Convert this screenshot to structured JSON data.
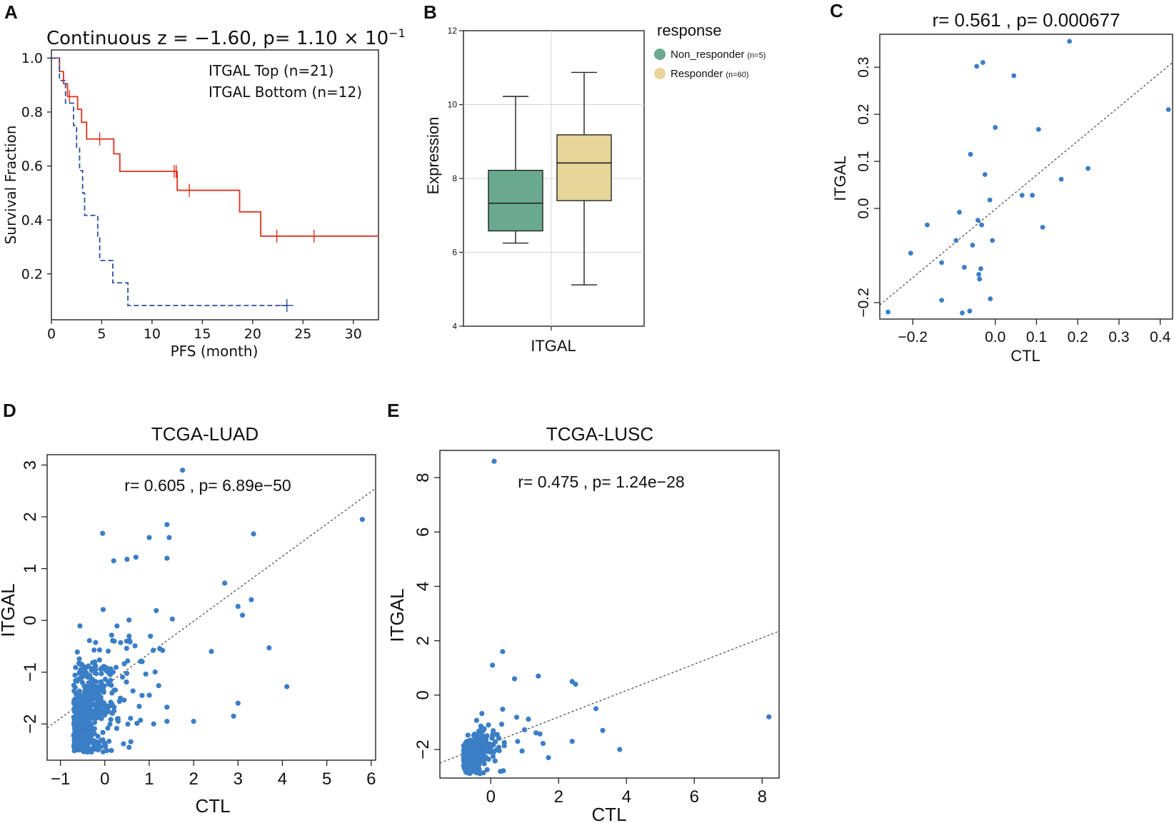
{
  "figure": {
    "panel_labels": [
      "A",
      "B",
      "C",
      "D",
      "E"
    ]
  },
  "chart_data": [
    {
      "panel": "A",
      "type": "line",
      "subtype": "kaplan-meier",
      "title": "Continuous z = −1.60, p= 1.10 × 10",
      "title_exponent": "−1",
      "xlabel": "PFS (month)",
      "ylabel": "Survival Fraction",
      "xlim": [
        0,
        32.5
      ],
      "ylim": [
        0.03,
        1.03
      ],
      "x_ticks": [
        0,
        5,
        10,
        15,
        20,
        25,
        30
      ],
      "x_tick_labels": [
        "0",
        "5",
        "10",
        "15",
        "20",
        "25",
        "30"
      ],
      "y_ticks": [
        0.2,
        0.4,
        0.6,
        0.8,
        1.0
      ],
      "y_tick_labels": [
        "0.2",
        "0.4",
        "0.6",
        "0.8",
        "1.0"
      ],
      "legend_position": "top-right",
      "series": [
        {
          "name": "ITGAL Top (n=21)",
          "color": "#e0301e",
          "style": "solid",
          "steps": [
            [
              0,
              1.0
            ],
            [
              0.8,
              0.95
            ],
            [
              1.2,
              0.905
            ],
            [
              1.6,
              0.857
            ],
            [
              2.6,
              0.81
            ],
            [
              3.0,
              0.762
            ],
            [
              3.5,
              0.7
            ],
            [
              6.2,
              0.645
            ],
            [
              6.8,
              0.58
            ],
            [
              12.5,
              0.51
            ],
            [
              18.7,
              0.43
            ],
            [
              20.8,
              0.34
            ],
            [
              32.5,
              0.34
            ]
          ],
          "censor": [
            [
              1.8,
              0.857
            ],
            [
              4.8,
              0.7
            ],
            [
              12.2,
              0.58
            ],
            [
              12.4,
              0.58
            ],
            [
              13.7,
              0.51
            ],
            [
              22.4,
              0.34
            ],
            [
              26.1,
              0.34
            ]
          ]
        },
        {
          "name": "ITGAL Bottom (n=12)",
          "color": "#2a4fa0",
          "style": "dashed",
          "steps": [
            [
              0,
              1.0
            ],
            [
              0.8,
              0.917
            ],
            [
              1.4,
              0.833
            ],
            [
              2.2,
              0.75
            ],
            [
              2.5,
              0.667
            ],
            [
              2.8,
              0.583
            ],
            [
              3.1,
              0.5
            ],
            [
              3.3,
              0.417
            ],
            [
              4.6,
              0.333
            ],
            [
              4.8,
              0.25
            ],
            [
              6.1,
              0.167
            ],
            [
              7.6,
              0.083
            ],
            [
              23.5,
              0.083
            ]
          ],
          "censor": [
            [
              23.4,
              0.083
            ]
          ]
        }
      ]
    },
    {
      "panel": "B",
      "type": "box",
      "xlabel": "ITGAL",
      "ylabel": "Expression",
      "ylim": [
        4,
        12
      ],
      "y_ticks": [
        4,
        6,
        8,
        10,
        12
      ],
      "y_tick_labels": [
        "4",
        "6",
        "8",
        "10",
        "12"
      ],
      "legend_title": "response",
      "legend_position": "right",
      "series": [
        {
          "name": "Non_responder",
          "n_label": "(n=5)",
          "color": "#6aa98f",
          "min": 6.25,
          "q1": 6.58,
          "median": 7.33,
          "q3": 8.22,
          "max": 10.22
        },
        {
          "name": "Responder",
          "n_label": "(n=60)",
          "color": "#e8d59a",
          "min": 5.12,
          "q1": 7.4,
          "median": 8.42,
          "q3": 9.18,
          "max": 10.87
        }
      ]
    },
    {
      "panel": "C",
      "type": "scatter",
      "title": "r= 0.561 , p= 0.000677",
      "xlabel": "CTL",
      "ylabel": "ITGAL",
      "xlim": [
        -0.28,
        0.43
      ],
      "ylim": [
        -0.235,
        0.37
      ],
      "x_ticks": [
        -0.2,
        0.0,
        0.1,
        0.2,
        0.3,
        0.4
      ],
      "x_tick_labels": [
        "−0.2",
        "0.0",
        "0.1",
        "0.2",
        "0.3",
        "0.4"
      ],
      "y_ticks": [
        -0.2,
        0.0,
        0.1,
        0.2,
        0.3
      ],
      "y_tick_labels": [
        "−0.2",
        "0.0",
        "0.1",
        "0.2",
        "0.3"
      ],
      "point_color": "#3a7ec6",
      "fit_line": [
        [
          -0.28,
          -0.205
        ],
        [
          0.43,
          0.31
        ]
      ],
      "points": [
        [
          -0.26,
          -0.22
        ],
        [
          -0.205,
          -0.095
        ],
        [
          -0.165,
          -0.035
        ],
        [
          -0.13,
          -0.195
        ],
        [
          -0.13,
          -0.115
        ],
        [
          -0.095,
          -0.068
        ],
        [
          -0.087,
          -0.008
        ],
        [
          -0.08,
          -0.222
        ],
        [
          -0.075,
          -0.125
        ],
        [
          -0.062,
          -0.218
        ],
        [
          -0.06,
          0.115
        ],
        [
          -0.055,
          -0.078
        ],
        [
          -0.045,
          0.302
        ],
        [
          -0.042,
          -0.025
        ],
        [
          -0.04,
          -0.14
        ],
        [
          -0.038,
          -0.15
        ],
        [
          -0.035,
          -0.128
        ],
        [
          -0.033,
          -0.035
        ],
        [
          -0.03,
          0.31
        ],
        [
          -0.025,
          0.072
        ],
        [
          -0.012,
          -0.192
        ],
        [
          -0.013,
          0.018
        ],
        [
          -0.007,
          -0.068
        ],
        [
          0.0,
          0.172
        ],
        [
          0.045,
          0.282
        ],
        [
          0.065,
          0.028
        ],
        [
          0.09,
          0.028
        ],
        [
          0.105,
          0.168
        ],
        [
          0.115,
          -0.04
        ],
        [
          0.16,
          0.062
        ],
        [
          0.18,
          0.355
        ],
        [
          0.225,
          0.085
        ],
        [
          0.42,
          0.21
        ]
      ]
    },
    {
      "panel": "D",
      "type": "scatter",
      "title": "TCGA-LUAD",
      "annotation": "r= 0.605 , p= 6.89e−50",
      "xlabel": "CTL",
      "ylabel": "ITGAL",
      "xlim": [
        -1.3,
        6.1
      ],
      "ylim": [
        -2.7,
        3.2
      ],
      "x_ticks": [
        -1,
        0,
        1,
        2,
        3,
        4,
        5,
        6
      ],
      "x_tick_labels": [
        "−1",
        "0",
        "1",
        "2",
        "3",
        "4",
        "5",
        "6"
      ],
      "y_ticks": [
        -2,
        -1,
        0,
        1,
        2,
        3
      ],
      "y_tick_labels": [
        "−2",
        "−1",
        "0",
        "1",
        "2",
        "3"
      ],
      "point_color": "#3a7ec6",
      "fit_line": [
        [
          -1.3,
          -2.08
        ],
        [
          6.1,
          2.55
        ]
      ],
      "notable_points": [
        [
          1.75,
          2.9
        ],
        [
          5.8,
          1.95
        ],
        [
          1.4,
          1.85
        ],
        [
          3.35,
          1.67
        ],
        [
          -0.05,
          1.68
        ],
        [
          1.45,
          1.6
        ],
        [
          1.0,
          1.6
        ],
        [
          0.7,
          1.22
        ],
        [
          0.5,
          1.18
        ],
        [
          0.2,
          1.15
        ],
        [
          1.4,
          1.2
        ],
        [
          2.7,
          0.72
        ],
        [
          3.3,
          0.4
        ],
        [
          3.0,
          0.27
        ],
        [
          3.1,
          0.1
        ],
        [
          3.7,
          -0.53
        ],
        [
          4.1,
          -1.28
        ],
        [
          2.9,
          -1.85
        ],
        [
          3.0,
          -1.6
        ],
        [
          2.4,
          -0.6
        ],
        [
          2.0,
          -1.95
        ],
        [
          1.1,
          -2.0
        ],
        [
          1.4,
          -1.95
        ]
      ],
      "cloud": {
        "n": 560,
        "x_mean": -0.45,
        "x_sd": 0.55,
        "x_min": -0.95,
        "slope": 0.62,
        "intercept": -1.55,
        "resid_sd": 0.72,
        "seed": 7
      }
    },
    {
      "panel": "E",
      "type": "scatter",
      "title": "TCGA-LUSC",
      "annotation": "r= 0.475 , p= 1.24e−28",
      "xlabel": "CTL",
      "ylabel": "ITGAL",
      "xlim": [
        -1.5,
        8.5
      ],
      "ylim": [
        -3.05,
        9.0
      ],
      "x_ticks": [
        0,
        2,
        4,
        6,
        8
      ],
      "x_tick_labels": [
        "0",
        "2",
        "4",
        "6",
        "8"
      ],
      "y_ticks": [
        -2,
        0,
        2,
        4,
        6,
        8
      ],
      "y_tick_labels": [
        "−2",
        "0",
        "2",
        "4",
        "6",
        "8"
      ],
      "point_color": "#3a7ec6",
      "fit_line": [
        [
          -1.5,
          -2.5
        ],
        [
          8.5,
          2.35
        ]
      ],
      "notable_points": [
        [
          0.1,
          8.6
        ],
        [
          8.2,
          -0.8
        ],
        [
          0.35,
          1.6
        ],
        [
          0.05,
          1.1
        ],
        [
          0.7,
          0.6
        ],
        [
          1.4,
          0.7
        ],
        [
          2.4,
          0.5
        ],
        [
          2.5,
          0.4
        ],
        [
          3.1,
          -0.5
        ],
        [
          3.3,
          -1.3
        ],
        [
          3.8,
          -2.0
        ],
        [
          2.4,
          -1.7
        ],
        [
          1.7,
          -2.3
        ]
      ],
      "cloud": {
        "n": 500,
        "x_mean": -0.55,
        "x_sd": 0.5,
        "x_min": -1.0,
        "slope": 0.55,
        "intercept": -1.85,
        "resid_sd": 0.5,
        "seed": 11
      }
    }
  ]
}
